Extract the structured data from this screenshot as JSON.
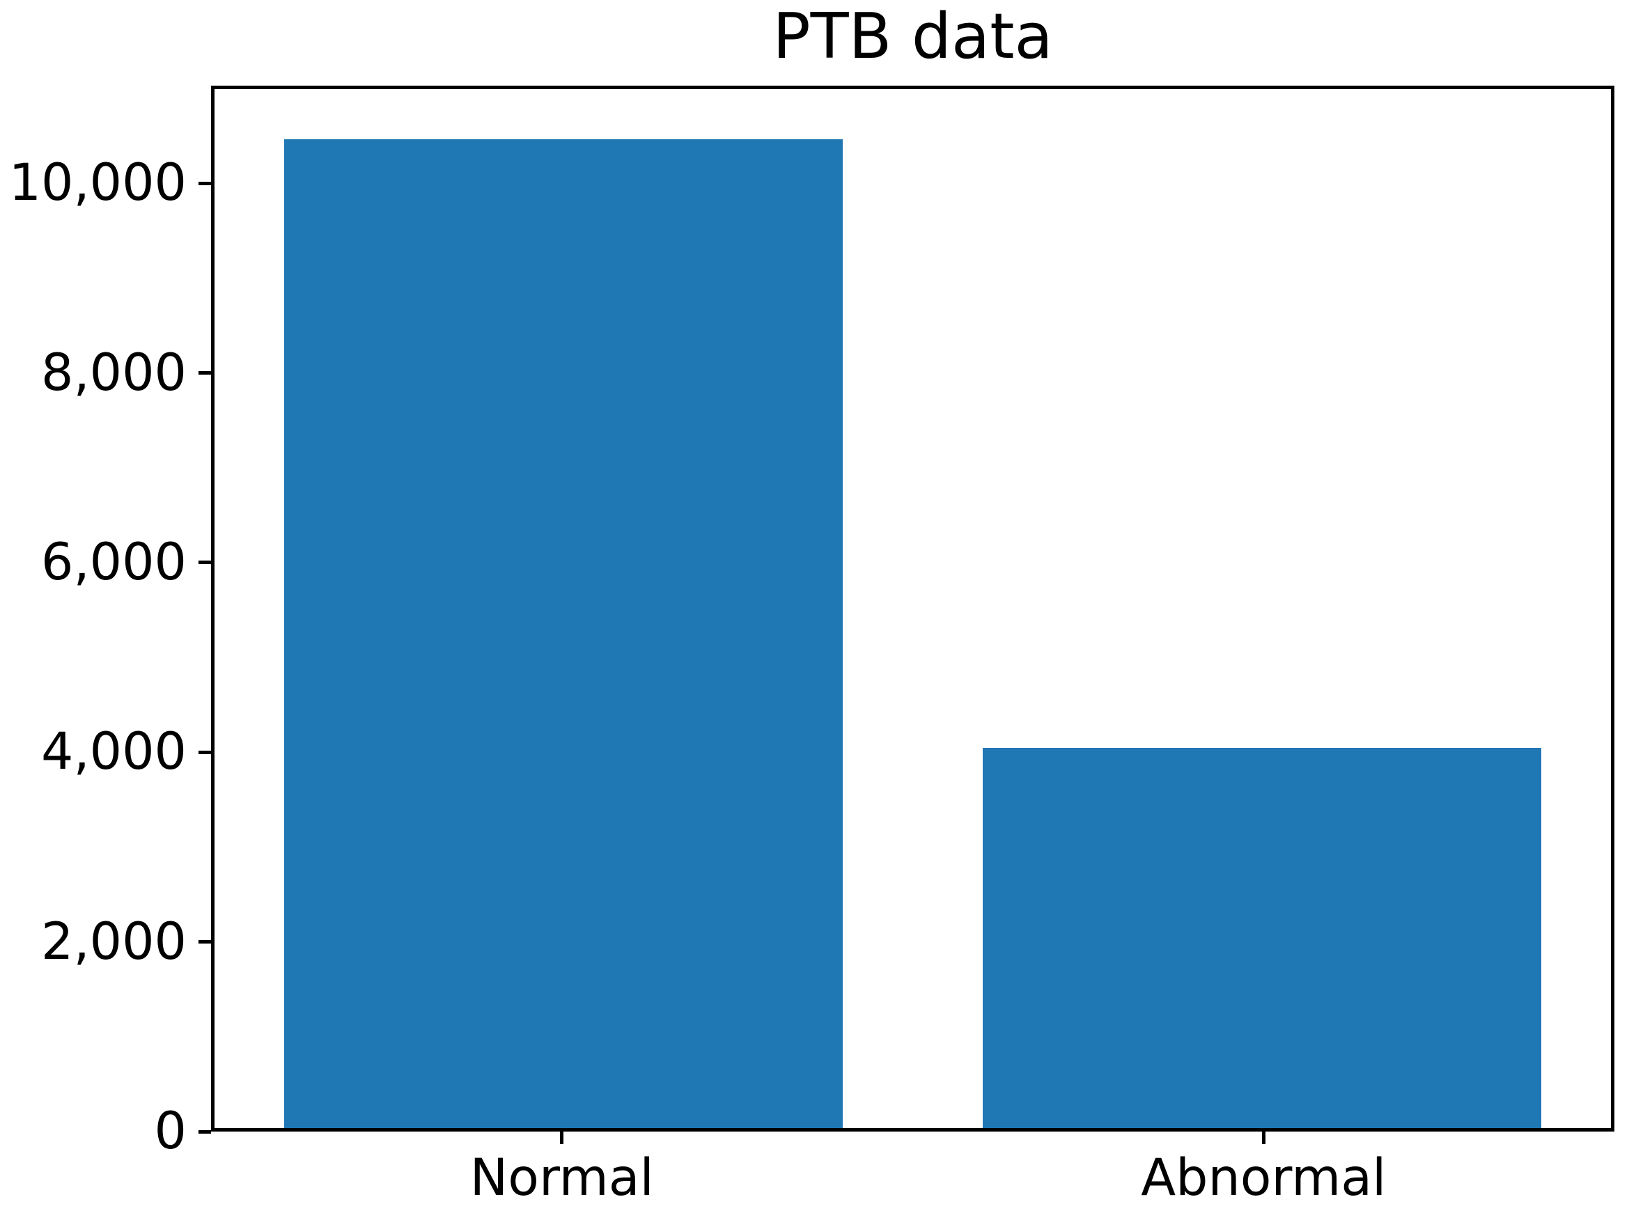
{
  "chart_data": {
    "type": "bar",
    "title": "PTB data",
    "categories": [
      "Normal",
      "Abnormal"
    ],
    "values": [
      10500,
      4040
    ],
    "xlabel": "",
    "ylabel": "",
    "ylim": [
      0,
      11030
    ],
    "yticks": [
      {
        "value": 0,
        "label": "0"
      },
      {
        "value": 2000,
        "label": "2,000"
      },
      {
        "value": 4000,
        "label": "4,000"
      },
      {
        "value": 6000,
        "label": "6,000"
      },
      {
        "value": 8000,
        "label": "8,000"
      },
      {
        "value": 10000,
        "label": "10,000"
      }
    ],
    "grid": false,
    "legend": null,
    "bar_color": "#1f77b4",
    "spine_color": "#000000",
    "text_color": "#000000",
    "background_color": "#ffffff"
  }
}
